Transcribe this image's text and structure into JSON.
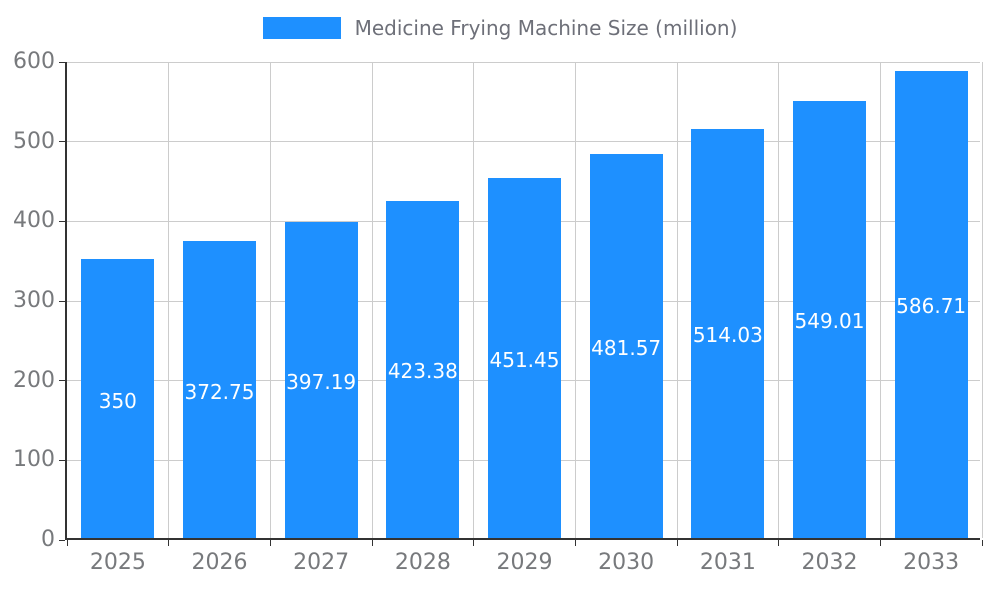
{
  "chart_data": {
    "type": "bar",
    "title": "Medicine Frying Machine Size (million)",
    "categories": [
      "2025",
      "2026",
      "2027",
      "2028",
      "2029",
      "2030",
      "2031",
      "2032",
      "2033"
    ],
    "values": [
      350,
      372.75,
      397.19,
      423.38,
      451.45,
      481.57,
      514.03,
      549.01,
      586.71
    ],
    "value_labels": [
      "350",
      "372.75",
      "397.19",
      "423.38",
      "451.45",
      "481.57",
      "514.03",
      "549.01",
      "586.71"
    ],
    "xlabel": "",
    "ylabel": "",
    "ylim": [
      0,
      600
    ],
    "y_ticks": [
      0,
      100,
      200,
      300,
      400,
      500,
      600
    ],
    "grid": true,
    "legend_position": "top",
    "colors": {
      "bar": "#1E90FF",
      "label_text": "#ffffff",
      "axis_line": "#333333",
      "grid_line": "#cccccc",
      "tick_text": "#77797c",
      "legend_text": "#6E7079",
      "background": "#ffffff"
    }
  }
}
